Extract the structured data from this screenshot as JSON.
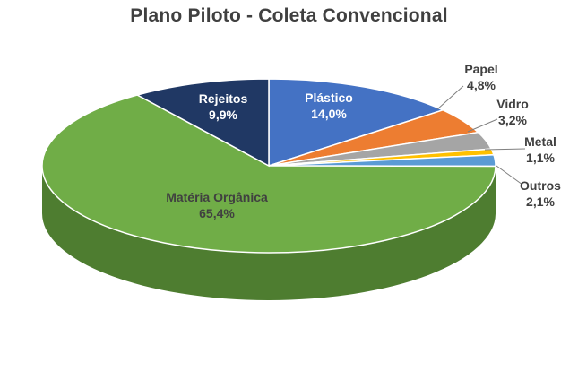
{
  "chart_data": {
    "type": "pie",
    "title": "Plano Piloto - Coleta Convencional",
    "slices": [
      {
        "name": "Plástico",
        "value_label": "14,0%",
        "value": 14.0,
        "color": "#4472c4",
        "side": "#2f5597"
      },
      {
        "name": "Papel",
        "value_label": "4,8%",
        "value": 4.8,
        "color": "#ed7d31",
        "side": "#b85c1f"
      },
      {
        "name": "Vidro",
        "value_label": "3,2%",
        "value": 3.2,
        "color": "#a5a5a5",
        "side": "#7b7b7b"
      },
      {
        "name": "Metal",
        "value_label": "1,1%",
        "value": 1.1,
        "color": "#ffc000",
        "side": "#c49300"
      },
      {
        "name": "Outros",
        "value_label": "2,1%",
        "value": 2.1,
        "color": "#5b9bd5",
        "side": "#3e76aa"
      },
      {
        "name": "Matéria Orgânica",
        "value_label": "65,4%",
        "value": 65.4,
        "color": "#70ad47",
        "side": "#4e7d30"
      },
      {
        "name": "Rejeitos",
        "value_label": "9,9%",
        "value": 9.9,
        "color": "#203864",
        "side": "#152545"
      }
    ]
  }
}
